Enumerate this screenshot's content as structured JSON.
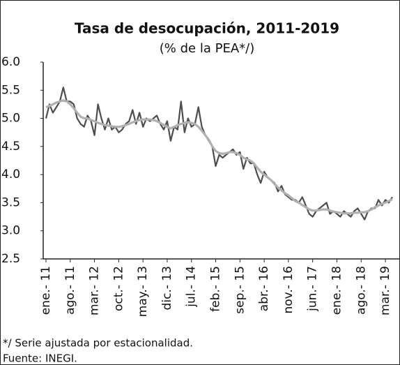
{
  "chart_data": {
    "type": "line",
    "title": "Tasa de desocupación, 2011-2019",
    "subtitle": "(% de la PEA*/)",
    "categories": [
      "ene.- 11",
      null,
      null,
      null,
      null,
      null,
      null,
      "ago.- 11",
      null,
      null,
      null,
      null,
      null,
      null,
      "mar.- 12",
      null,
      null,
      null,
      null,
      null,
      null,
      "oct.- 12",
      null,
      null,
      null,
      null,
      null,
      null,
      "may.- 13",
      null,
      null,
      null,
      null,
      null,
      null,
      "dic.- 13",
      null,
      null,
      null,
      null,
      null,
      null,
      "jul.- 14",
      null,
      null,
      null,
      null,
      null,
      null,
      "feb.- 15",
      null,
      null,
      null,
      null,
      null,
      null,
      "sep.- 15",
      null,
      null,
      null,
      null,
      null,
      null,
      "abr.- 16",
      null,
      null,
      null,
      null,
      null,
      null,
      "nov.- 16",
      null,
      null,
      null,
      null,
      null,
      null,
      "jun.- 17",
      null,
      null,
      null,
      null,
      null,
      null,
      "ene.- 18",
      null,
      null,
      null,
      null,
      null,
      null,
      "ago.- 18",
      null,
      null,
      null,
      null,
      null,
      null,
      "mar.- 19",
      null,
      null
    ],
    "series": [
      {
        "color": "#4d4d4d",
        "values": [
          5.0,
          5.25,
          5.1,
          5.2,
          5.3,
          5.55,
          5.3,
          5.3,
          5.25,
          5.0,
          4.9,
          4.85,
          5.05,
          4.95,
          4.7,
          5.25,
          5.0,
          4.8,
          5.0,
          4.8,
          4.85,
          4.75,
          4.8,
          4.9,
          4.95,
          5.15,
          4.9,
          5.1,
          4.85,
          5.0,
          4.95,
          5.0,
          5.05,
          4.9,
          4.8,
          4.95,
          4.6,
          4.85,
          4.8,
          5.3,
          4.75,
          5.0,
          4.85,
          4.9,
          5.2,
          4.85,
          4.7,
          4.6,
          4.5,
          4.15,
          4.35,
          4.3,
          4.35,
          4.4,
          4.45,
          4.35,
          4.4,
          4.1,
          4.3,
          4.2,
          4.2,
          4.0,
          3.85,
          4.05,
          3.95,
          3.9,
          3.85,
          3.7,
          3.8,
          3.65,
          3.6,
          3.55,
          3.55,
          3.5,
          3.6,
          3.45,
          3.3,
          3.25,
          3.35,
          3.4,
          3.45,
          3.5,
          3.3,
          3.35,
          3.3,
          3.25,
          3.35,
          3.3,
          3.25,
          3.35,
          3.4,
          3.3,
          3.2,
          3.35,
          3.4,
          3.4,
          3.55,
          3.45,
          3.55,
          3.5,
          3.6
        ]
      },
      {
        "color": "#b0b0b0",
        "values": [
          5.2,
          5.22,
          5.25,
          5.28,
          5.3,
          5.32,
          5.3,
          5.25,
          5.18,
          5.1,
          5.03,
          5.0,
          5.0,
          4.97,
          4.95,
          4.92,
          4.9,
          4.88,
          4.87,
          4.86,
          4.85,
          4.85,
          4.86,
          4.88,
          4.9,
          4.93,
          4.95,
          4.97,
          4.98,
          4.98,
          4.98,
          4.97,
          4.95,
          4.92,
          4.88,
          4.85,
          4.82,
          4.85,
          4.88,
          4.9,
          4.92,
          4.93,
          4.92,
          4.9,
          4.85,
          4.78,
          4.7,
          4.62,
          4.5,
          4.42,
          4.38,
          4.37,
          4.38,
          4.4,
          4.4,
          4.38,
          4.35,
          4.3,
          4.27,
          4.25,
          4.2,
          4.12,
          4.05,
          4.0,
          3.95,
          3.9,
          3.83,
          3.77,
          3.72,
          3.67,
          3.63,
          3.58,
          3.53,
          3.5,
          3.46,
          3.42,
          3.38,
          3.36,
          3.36,
          3.37,
          3.38,
          3.38,
          3.36,
          3.34,
          3.33,
          3.32,
          3.31,
          3.31,
          3.31,
          3.32,
          3.32,
          3.33,
          3.33,
          3.35,
          3.38,
          3.42,
          3.45,
          3.48,
          3.5,
          3.53,
          3.56
        ]
      }
    ],
    "ylim": [
      2.5,
      6
    ],
    "yticks": [
      2.5,
      {
        "value": 3,
        "label": "3.0"
      },
      3.5,
      {
        "value": 4,
        "label": "4.0"
      },
      4.5,
      {
        "value": 5,
        "label": "5.0"
      },
      5.5,
      {
        "value": 6,
        "label": "6.0"
      }
    ],
    "notes": [
      "*/ Serie ajustada por estacionalidad.",
      "Fuente: INEGI."
    ]
  }
}
